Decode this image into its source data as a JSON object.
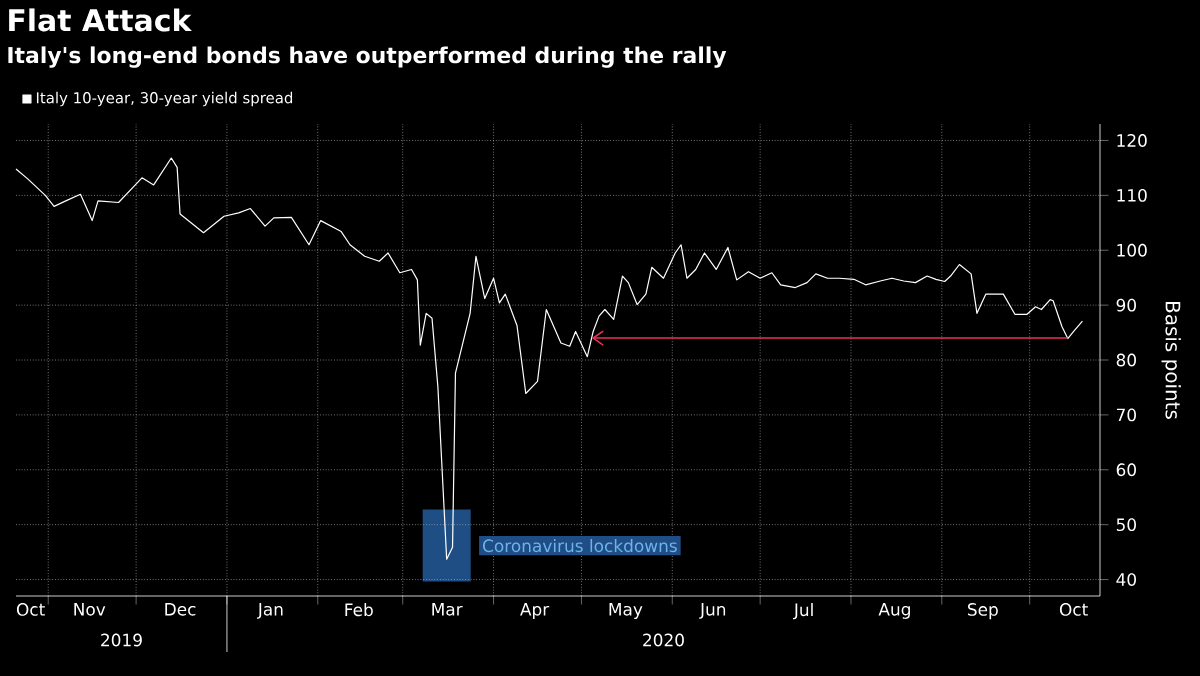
{
  "chart_data": {
    "type": "line",
    "title": "Flat Attack",
    "subtitle": "Italy's long-end bonds have outperformed during the rally",
    "ylabel": "Basis points",
    "xlim": [
      "2019-10-21",
      "2020-10-25"
    ],
    "ylim": [
      37,
      123
    ],
    "yticks": [
      40,
      50,
      60,
      70,
      80,
      90,
      100,
      110,
      120
    ],
    "xticks": [
      {
        "value": "2019-10-26",
        "label": "Oct"
      },
      {
        "value": "2019-11-01",
        "label": null
      },
      {
        "value": "2019-11-15",
        "label": "Nov"
      },
      {
        "value": "2019-12-01",
        "label": null
      },
      {
        "value": "2019-12-16",
        "label": "Dec"
      },
      {
        "value": "2020-01-01",
        "label": null
      },
      {
        "value": "2020-01-16",
        "label": "Jan"
      },
      {
        "value": "2020-02-01",
        "label": null
      },
      {
        "value": "2020-02-15",
        "label": "Feb"
      },
      {
        "value": "2020-03-01",
        "label": null
      },
      {
        "value": "2020-03-16",
        "label": "Mar"
      },
      {
        "value": "2020-04-01",
        "label": null
      },
      {
        "value": "2020-04-15",
        "label": "Apr"
      },
      {
        "value": "2020-05-01",
        "label": null
      },
      {
        "value": "2020-05-16",
        "label": "May"
      },
      {
        "value": "2020-06-01",
        "label": null
      },
      {
        "value": "2020-06-15",
        "label": "Jun"
      },
      {
        "value": "2020-07-01",
        "label": null
      },
      {
        "value": "2020-07-16",
        "label": "Jul"
      },
      {
        "value": "2020-08-01",
        "label": null
      },
      {
        "value": "2020-08-16",
        "label": "Aug"
      },
      {
        "value": "2020-09-01",
        "label": null
      },
      {
        "value": "2020-09-15",
        "label": "Sep"
      },
      {
        "value": "2020-10-01",
        "label": null
      },
      {
        "value": "2020-10-16",
        "label": "Oct"
      }
    ],
    "grid": true,
    "legend": "top left",
    "series": [
      {
        "name": "Italy 10-year, 30-year yield spread",
        "color": "#ffffff",
        "x": [
          "2019-10-21",
          "2019-10-25",
          "2019-10-31",
          "2019-11-03",
          "2019-11-07",
          "2019-11-12",
          "2019-11-16",
          "2019-11-18",
          "2019-11-25",
          "2019-11-30",
          "2019-12-03",
          "2019-12-07",
          "2019-12-13",
          "2019-12-15",
          "2019-12-16",
          "2019-12-24",
          "2019-12-31",
          "2020-01-05",
          "2020-01-09",
          "2020-01-14",
          "2020-01-17",
          "2020-01-23",
          "2020-01-29",
          "2020-02-02",
          "2020-02-09",
          "2020-02-12",
          "2020-02-17",
          "2020-02-22",
          "2020-02-25",
          "2020-02-29",
          "2020-03-04",
          "2020-03-06",
          "2020-03-07",
          "2020-03-09",
          "2020-03-11",
          "2020-03-13",
          "2020-03-16",
          "2020-03-18",
          "2020-03-19",
          "2020-03-24",
          "2020-03-26",
          "2020-03-29",
          "2020-04-01",
          "2020-04-03",
          "2020-04-05",
          "2020-04-09",
          "2020-04-12",
          "2020-04-16",
          "2020-04-19",
          "2020-04-24",
          "2020-04-27",
          "2020-04-29",
          "2020-05-03",
          "2020-05-05",
          "2020-05-07",
          "2020-05-09",
          "2020-05-12",
          "2020-05-15",
          "2020-05-17",
          "2020-05-20",
          "2020-05-23",
          "2020-05-25",
          "2020-05-29",
          "2020-06-02",
          "2020-06-04",
          "2020-06-06",
          "2020-06-09",
          "2020-06-12",
          "2020-06-16",
          "2020-06-20",
          "2020-06-23",
          "2020-06-27",
          "2020-07-01",
          "2020-07-05",
          "2020-07-08",
          "2020-07-13",
          "2020-07-17",
          "2020-07-20",
          "2020-07-24",
          "2020-07-28",
          "2020-08-02",
          "2020-08-06",
          "2020-08-11",
          "2020-08-15",
          "2020-08-19",
          "2020-08-23",
          "2020-08-27",
          "2020-08-30",
          "2020-09-02",
          "2020-09-04",
          "2020-09-07",
          "2020-09-11",
          "2020-09-13",
          "2020-09-16",
          "2020-09-22",
          "2020-09-26",
          "2020-09-30",
          "2020-10-03",
          "2020-10-05",
          "2020-10-08",
          "2020-10-09",
          "2020-10-12",
          "2020-10-14",
          "2020-10-16",
          "2020-10-19"
        ],
        "values": [
          114.8,
          113.0,
          110.0,
          108.0,
          109.0,
          110.2,
          105.4,
          109.0,
          108.7,
          111.5,
          113.2,
          111.9,
          116.8,
          115.1,
          106.6,
          103.2,
          106.2,
          106.8,
          107.6,
          104.4,
          105.9,
          106.0,
          101.0,
          105.4,
          103.4,
          101.0,
          98.9,
          98.0,
          99.5,
          95.9,
          96.5,
          94.6,
          82.7,
          88.5,
          87.6,
          75.1,
          43.7,
          45.9,
          77.6,
          88.5,
          98.9,
          91.2,
          94.9,
          90.4,
          92.0,
          86.3,
          73.9,
          76.1,
          89.2,
          83.1,
          82.5,
          85.2,
          80.6,
          85.2,
          88.0,
          89.2,
          87.4,
          95.3,
          94.1,
          90.1,
          92.0,
          96.9,
          94.9,
          99.5,
          101.0,
          94.9,
          96.5,
          99.5,
          96.5,
          100.5,
          94.6,
          96.1,
          94.9,
          95.9,
          93.7,
          93.2,
          94.1,
          95.7,
          94.9,
          94.9,
          94.7,
          93.7,
          94.4,
          94.9,
          94.4,
          94.1,
          95.3,
          94.7,
          94.3,
          95.3,
          97.4,
          95.7,
          88.5,
          92.0,
          92.0,
          88.3,
          88.3,
          89.7,
          89.2,
          91.0,
          90.8,
          86.1,
          83.9,
          85.2,
          87.1
        ]
      },
      {
        "type": "line",
        "color": "#e8325a",
        "x": [
          "2020-05-05",
          "2020-10-14"
        ],
        "values": [
          84,
          84
        ]
      }
    ],
    "annotations": [
      {
        "text": "Coronavirus lockdowns",
        "x": "2020-03-16",
        "y": 44
      },
      "2019",
      "2020"
    ]
  }
}
